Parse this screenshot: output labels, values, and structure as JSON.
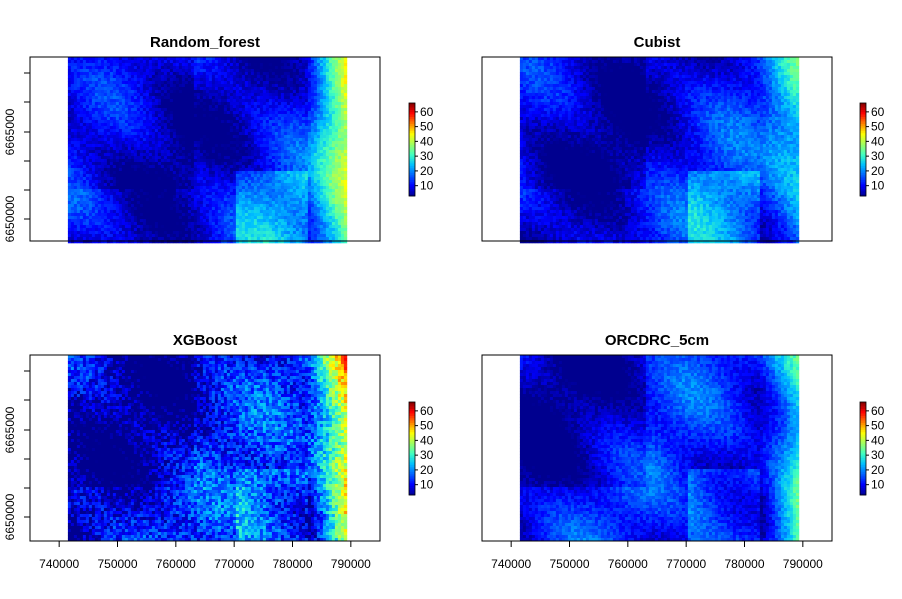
{
  "figure": {
    "type": "raster-panels",
    "colors": {
      "palette": [
        "#00008f",
        "#0000ff",
        "#0060ff",
        "#00c0ff",
        "#40ffbf",
        "#a0ff60",
        "#ffff00",
        "#ff8000",
        "#ff0000",
        "#800000"
      ],
      "no_data": "#ffffff"
    }
  },
  "chart_data": [
    {
      "type": "heatmap",
      "title": "Random_forest",
      "x_ticks": [],
      "y_ticks": [
        "6650000",
        "6665000"
      ],
      "xlim": [
        735000,
        795000
      ],
      "value_range": [
        3,
        66
      ],
      "colorbar_ticks": [
        10,
        20,
        30,
        40,
        50,
        60
      ],
      "colorbar_labels": [
        "10",
        "20",
        "30",
        "40",
        "50",
        "60"
      ],
      "data_extent_x": [
        741500,
        789000
      ],
      "east_hotspot": 40
    },
    {
      "type": "heatmap",
      "title": "Cubist",
      "x_ticks": [],
      "y_ticks": [],
      "xlim": [
        735000,
        795000
      ],
      "value_range": [
        3,
        66
      ],
      "colorbar_ticks": [
        10,
        20,
        30,
        40,
        50,
        60
      ],
      "colorbar_labels": [
        "10",
        "20",
        "30",
        "40",
        "50",
        "60"
      ],
      "data_extent_x": [
        741500,
        789000
      ],
      "east_hotspot": 28
    },
    {
      "type": "heatmap",
      "title": "XGBoost",
      "x_ticks": [
        "740000",
        "750000",
        "760000",
        "770000",
        "780000",
        "790000"
      ],
      "y_ticks": [
        "6650000",
        "6665000"
      ],
      "xlim": [
        735000,
        795000
      ],
      "value_range": [
        3,
        66
      ],
      "colorbar_ticks": [
        10,
        20,
        30,
        40,
        50,
        60
      ],
      "colorbar_labels": [
        "10",
        "20",
        "30",
        "40",
        "50",
        "60"
      ],
      "data_extent_x": [
        741500,
        789000
      ],
      "east_hotspot": 52
    },
    {
      "type": "heatmap",
      "title": "ORCDRC_5cm",
      "x_ticks": [
        "740000",
        "750000",
        "760000",
        "770000",
        "780000",
        "790000"
      ],
      "y_ticks": [],
      "xlim": [
        735000,
        795000
      ],
      "value_range": [
        3,
        66
      ],
      "colorbar_ticks": [
        10,
        20,
        30,
        40,
        50,
        60
      ],
      "colorbar_labels": [
        "10",
        "20",
        "30",
        "40",
        "50",
        "60"
      ],
      "data_extent_x": [
        741500,
        789000
      ],
      "east_hotspot": 36
    }
  ]
}
